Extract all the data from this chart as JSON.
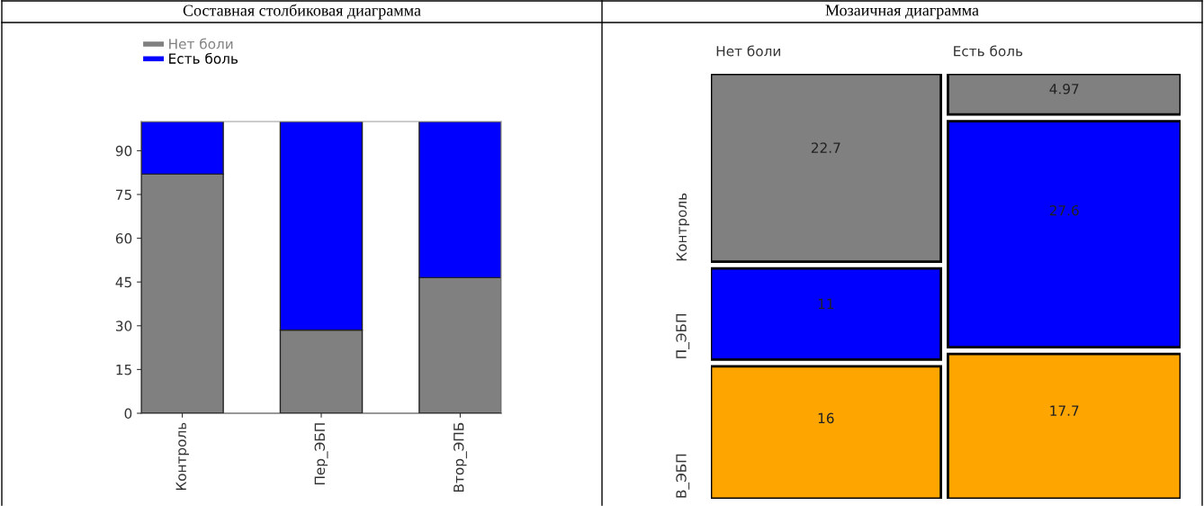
{
  "chart_data": [
    {
      "type": "bar",
      "title": "Составная столбиковая диаграмма",
      "stacked": true,
      "categories": [
        "Контроль",
        "Пер_ЭБП",
        "Втор_ЭПБ"
      ],
      "series": [
        {
          "name": "Нет боли",
          "color": "#808080",
          "values": [
            82,
            28.5,
            46.5
          ]
        },
        {
          "name": "Есть боль",
          "color": "#0000ff",
          "values": [
            18,
            71.5,
            53.5
          ]
        }
      ],
      "ylim": [
        0,
        100
      ],
      "yticks": [
        0,
        15,
        30,
        45,
        60,
        75,
        90
      ],
      "legend": "top left",
      "grid": false
    },
    {
      "type": "other",
      "title": "Мозаичная диаграмма",
      "categories": [
        "Нет боли",
        "Есть боль"
      ],
      "series": [
        {
          "name": "Контроль",
          "color": "#808080",
          "values": [
            22.7,
            4.97
          ]
        },
        {
          "name": "П_ЭБП",
          "color": "#0000ff",
          "values": [
            11,
            27.6
          ]
        },
        {
          "name": "В_ЭБП",
          "color": "#ffa500",
          "values": [
            16,
            17.7
          ]
        }
      ],
      "data_labels": true
    }
  ]
}
